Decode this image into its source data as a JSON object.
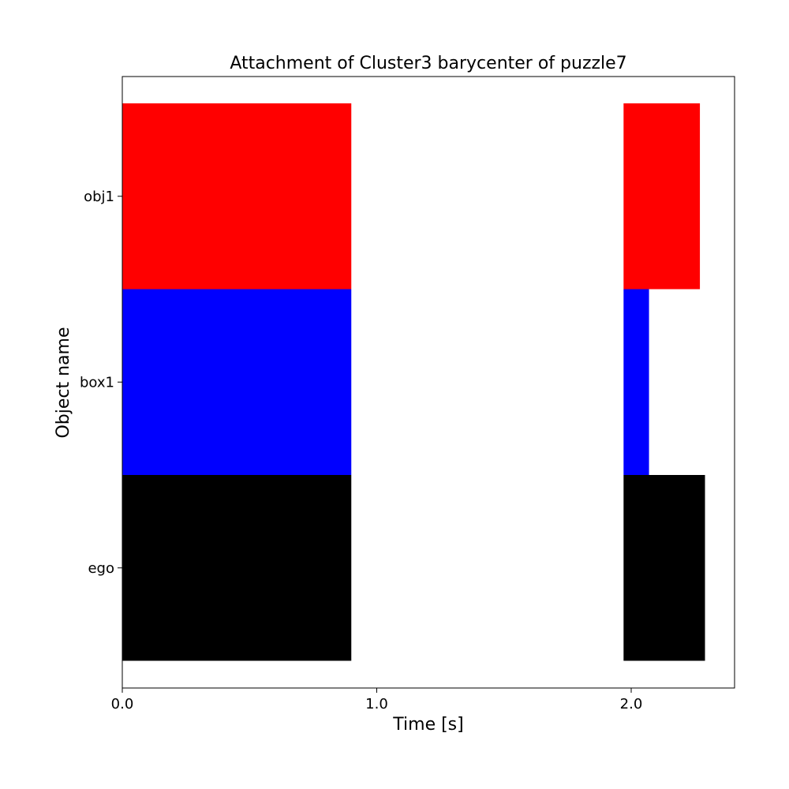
{
  "chart_data": {
    "type": "bar",
    "orientation": "horizontal",
    "title": "Attachment of Cluster3 barycenter of puzzle7",
    "xlabel": "Time [s]",
    "ylabel": "Object name",
    "xlim": [
      0.0,
      2.4
    ],
    "x_ticks": [
      "0.0",
      "1.0",
      "2.0"
    ],
    "categories": [
      "ego",
      "box1",
      "obj1"
    ],
    "grid": false,
    "legend": "none",
    "series": [
      {
        "category": "obj1",
        "color": "#ff0000",
        "intervals": [
          [
            0.0,
            0.9
          ],
          [
            1.97,
            2.27
          ]
        ]
      },
      {
        "category": "box1",
        "color": "#0000ff",
        "intervals": [
          [
            0.0,
            0.9
          ],
          [
            1.97,
            2.07
          ]
        ]
      },
      {
        "category": "ego",
        "color": "#000000",
        "intervals": [
          [
            0.0,
            0.9
          ],
          [
            1.97,
            2.29
          ]
        ]
      }
    ]
  }
}
